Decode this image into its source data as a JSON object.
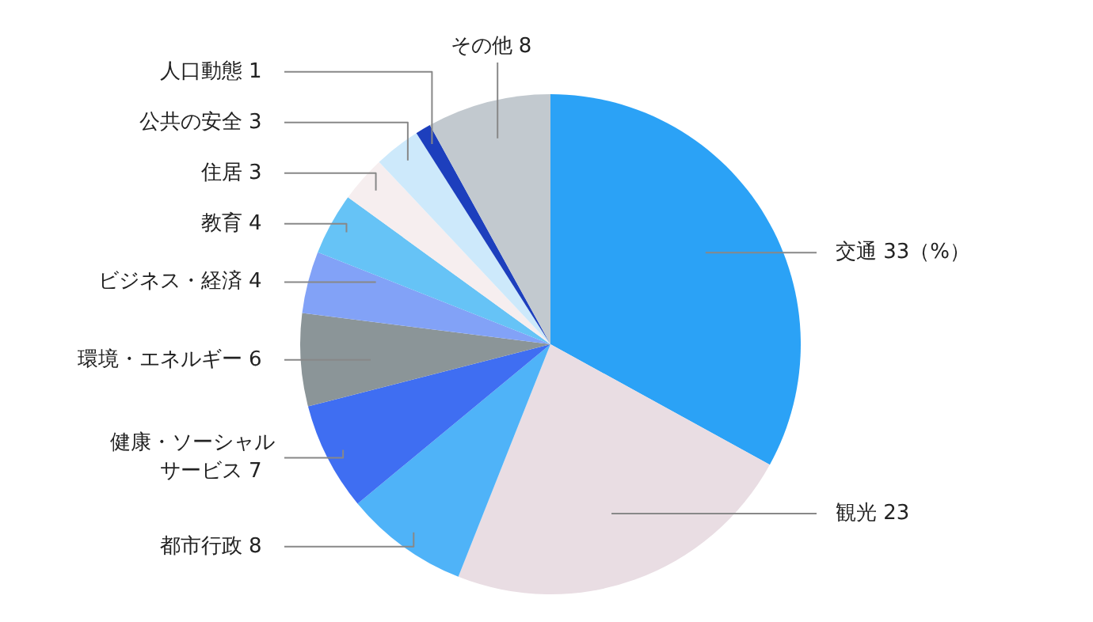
{
  "chart_data": {
    "type": "pie",
    "categories": [
      "交通",
      "観光",
      "都市行政",
      "健康・ソーシャルサービス",
      "環境・エネルギー",
      "ビジネス・経済",
      "教育",
      "住居",
      "公共の安全",
      "人口動態",
      "その他"
    ],
    "values": [
      33,
      23,
      8,
      7,
      6,
      4,
      4,
      3,
      3,
      1,
      8
    ],
    "value_labels": [
      "33（%）",
      "23",
      "8",
      "7",
      "6",
      "4",
      "4",
      "3",
      "3",
      "1",
      "8"
    ],
    "colors": [
      "#2ba2f6",
      "#e9dde3",
      "#4fb3f8",
      "#3f6ef2",
      "#8b9598",
      "#82a2f7",
      "#66c3f6",
      "#f6eeef",
      "#cde9fb",
      "#1d3fbd",
      "#c2c9cf"
    ]
  }
}
